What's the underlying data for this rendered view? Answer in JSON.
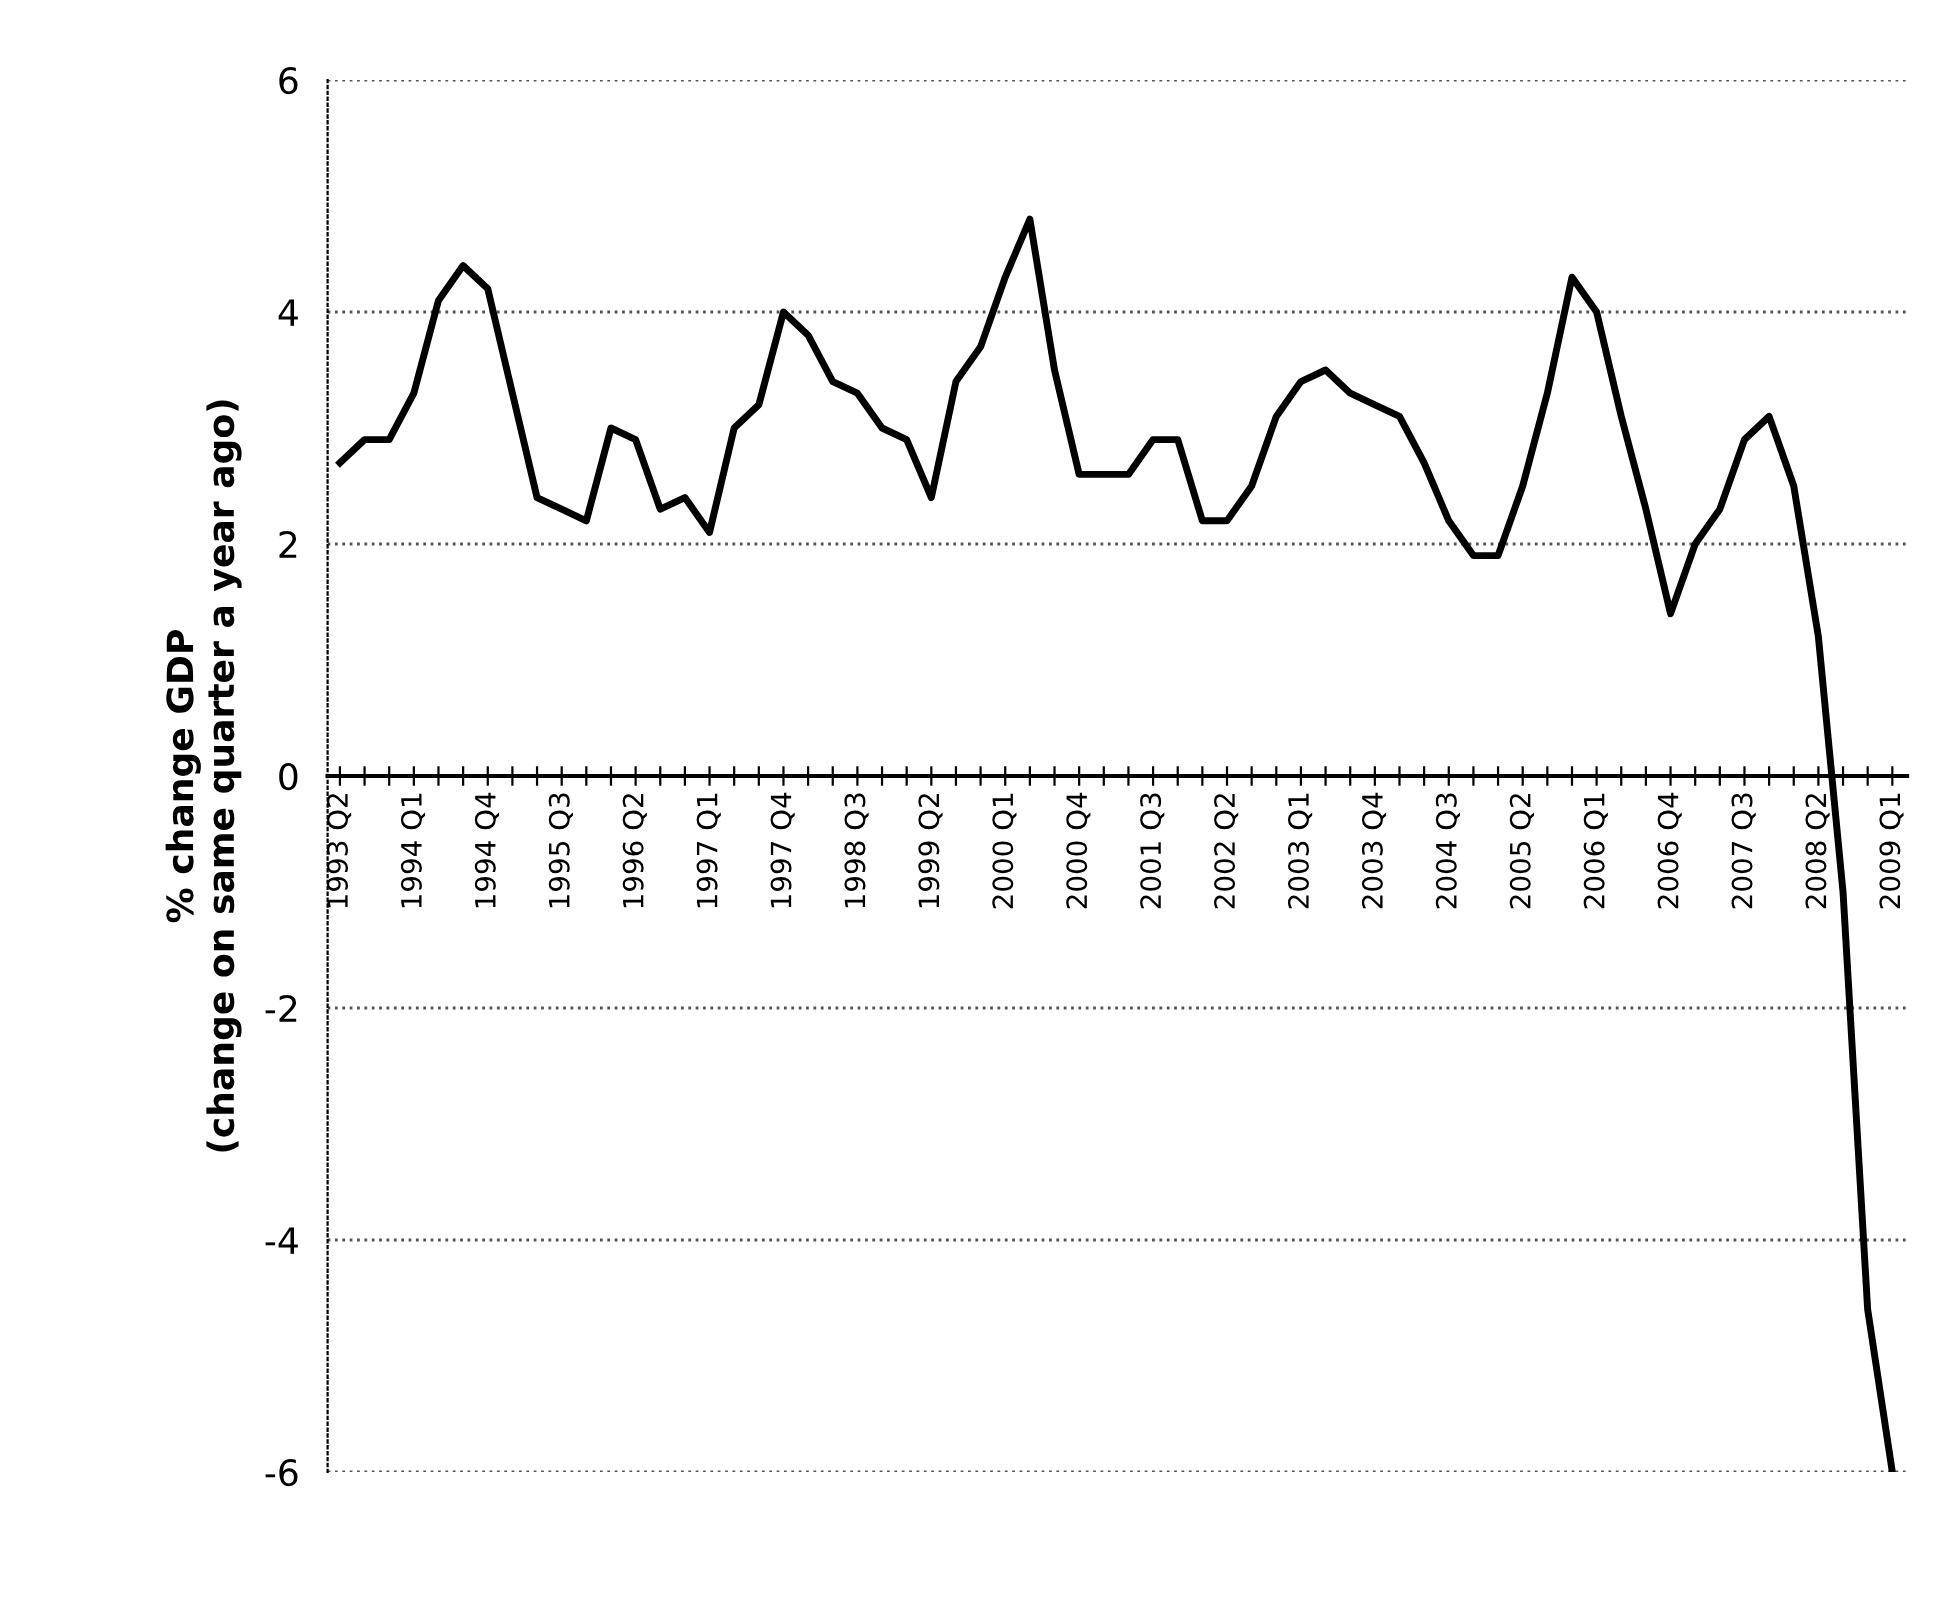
{
  "chart_data": {
    "type": "line",
    "ylabel": "% change GDP\n(change on same quarter a year ago)",
    "categories": [
      "1993 Q2",
      null,
      null,
      "1994 Q1",
      null,
      null,
      "1994 Q4",
      null,
      null,
      "1995 Q3",
      null,
      null,
      "1996 Q2",
      null,
      null,
      "1997 Q1",
      null,
      null,
      "1997 Q4",
      null,
      null,
      "1998 Q3",
      null,
      null,
      "1999 Q2",
      null,
      null,
      "2000 Q1",
      null,
      null,
      "2000 Q4",
      null,
      null,
      "2001 Q3",
      null,
      null,
      "2002 Q2",
      null,
      null,
      "2003 Q1",
      null,
      null,
      "2003 Q4",
      null,
      null,
      "2004 Q3",
      null,
      null,
      "2005 Q2",
      null,
      null,
      "2006 Q1",
      null,
      null,
      "2006 Q4",
      null,
      null,
      "2007 Q3",
      null,
      null,
      "2008 Q2",
      null,
      null,
      "2009 Q1"
    ],
    "series": [
      {
        "color": "#000000",
        "values": [
          2.7,
          2.9,
          2.9,
          3.3,
          4.1,
          4.4,
          4.2,
          3.3,
          2.4,
          2.3,
          2.2,
          3.0,
          2.9,
          2.3,
          2.4,
          2.1,
          3.0,
          3.2,
          4.0,
          3.8,
          3.4,
          3.3,
          3.0,
          2.9,
          2.4,
          3.4,
          3.7,
          4.3,
          4.8,
          3.5,
          2.6,
          2.6,
          2.6,
          2.9,
          2.9,
          2.2,
          2.2,
          2.5,
          3.1,
          3.4,
          3.5,
          3.3,
          3.2,
          3.1,
          2.7,
          2.2,
          1.9,
          1.9,
          2.5,
          3.3,
          4.3,
          4.0,
          3.1,
          2.3,
          1.4,
          2.0,
          2.3,
          2.9,
          3.1,
          2.5,
          1.2,
          -1.0,
          -4.6,
          -6.0
        ]
      }
    ],
    "ylim": [
      -6,
      6
    ],
    "yticks": [
      -6,
      -4,
      -2,
      0,
      2,
      4,
      6
    ],
    "grid": "y",
    "marker": "none",
    "line_style": "solid"
  }
}
